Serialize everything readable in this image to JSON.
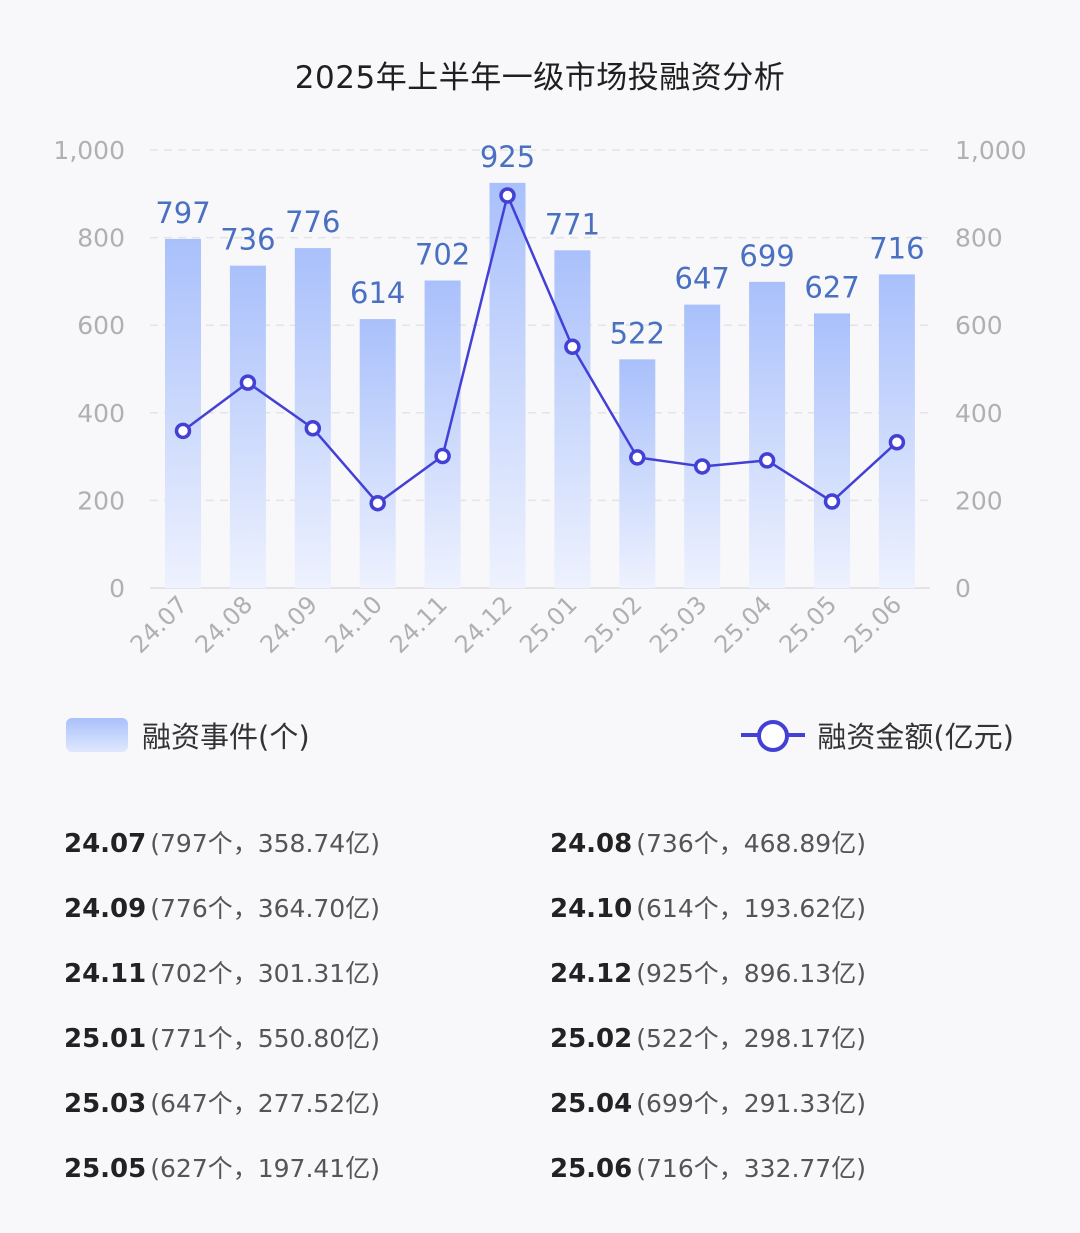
{
  "chart_data": {
    "type": "bar+line",
    "title": "2025年上半年一级市场投融资分析",
    "categories": [
      "24.07",
      "24.08",
      "24.09",
      "24.10",
      "24.11",
      "24.12",
      "25.01",
      "25.02",
      "25.03",
      "25.04",
      "25.05",
      "25.06"
    ],
    "series": [
      {
        "name": "融资事件(个)",
        "type": "bar",
        "axis": "left",
        "values": [
          797,
          736,
          776,
          614,
          702,
          925,
          771,
          522,
          647,
          699,
          627,
          716
        ]
      },
      {
        "name": "融资金额(亿元)",
        "type": "line",
        "axis": "right",
        "values": [
          358.74,
          468.89,
          364.7,
          193.62,
          301.31,
          896.13,
          550.8,
          298.17,
          277.52,
          291.33,
          197.41,
          332.77
        ]
      }
    ],
    "y_left": {
      "ticks": [
        "0",
        "200",
        "400",
        "600",
        "800",
        "1,000"
      ],
      "ylim": [
        0,
        1000
      ]
    },
    "y_right": {
      "ticks": [
        "0",
        "200",
        "400",
        "600",
        "800",
        "1,000"
      ],
      "ylim": [
        0,
        1000
      ]
    },
    "grid": true,
    "legend_position": "bottom",
    "bar_labels": [
      "797",
      "736",
      "776",
      "614",
      "702",
      "925",
      "771",
      "522",
      "647",
      "699",
      "627",
      "716"
    ]
  },
  "colors": {
    "bar_top": "#a9c0fb",
    "bar_bottom": "#eef2fe",
    "line": "#4340d6",
    "bar_label": "#4a70c2",
    "axis_text": "#b0b0b0",
    "grid": "#e4e4e8"
  },
  "legend": {
    "bars_label": "融资事件(个)",
    "line_label": "融资金额(亿元)"
  },
  "summary": [
    {
      "month": "24.07",
      "detail": "(797个，358.74亿)"
    },
    {
      "month": "24.08",
      "detail": "(736个，468.89亿)"
    },
    {
      "month": "24.09",
      "detail": "(776个，364.70亿)"
    },
    {
      "month": "24.10",
      "detail": "(614个，193.62亿)"
    },
    {
      "month": "24.11",
      "detail": "(702个，301.31亿)"
    },
    {
      "month": "24.12",
      "detail": "(925个，896.13亿)"
    },
    {
      "month": "25.01",
      "detail": "(771个，550.80亿)"
    },
    {
      "month": "25.02",
      "detail": "(522个，298.17亿)"
    },
    {
      "month": "25.03",
      "detail": "(647个，277.52亿)"
    },
    {
      "month": "25.04",
      "detail": "(699个，291.33亿)"
    },
    {
      "month": "25.05",
      "detail": "(627个，197.41亿)"
    },
    {
      "month": "25.06",
      "detail": "(716个，332.77亿)"
    }
  ]
}
